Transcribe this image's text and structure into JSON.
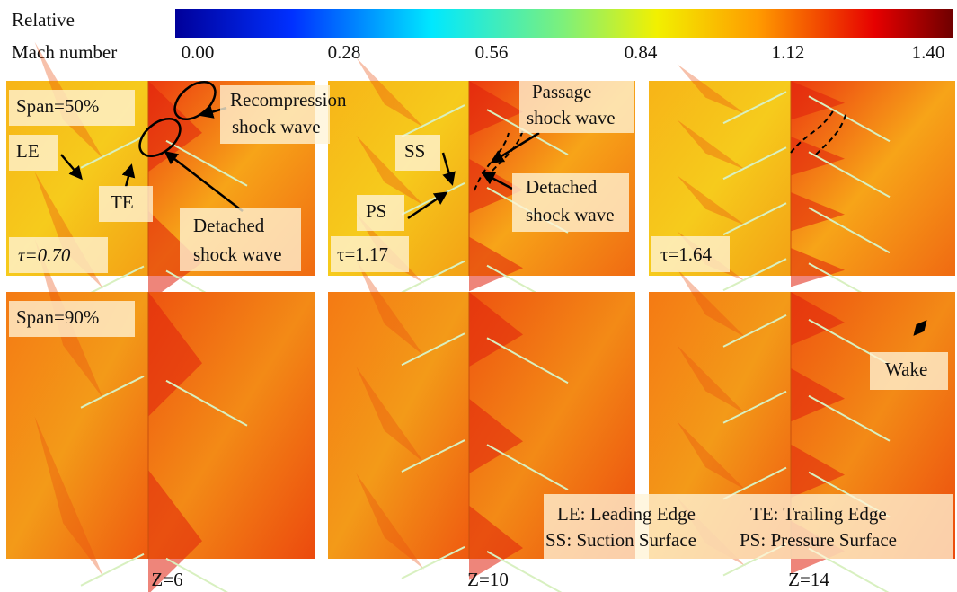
{
  "colorbar": {
    "title": [
      "Relative",
      "Mach number"
    ],
    "ticks": [
      "0.00",
      "0.28",
      "0.56",
      "0.84",
      "1.12",
      "1.40"
    ]
  },
  "rows": [
    "Span=50%",
    "Span=90%"
  ],
  "columns": [
    "Z=6",
    "Z=10",
    "Z=14"
  ],
  "tau": [
    "τ=0.70",
    "τ=1.17",
    "τ=1.64"
  ],
  "annotations": {
    "le": "LE",
    "te": "TE",
    "ss": "SS",
    "ps": "PS",
    "wake": "Wake",
    "recompression": [
      "Recompression",
      "shock wave"
    ],
    "detached_z6": [
      "Detached",
      "shock wave"
    ],
    "passage": [
      "Passage",
      "shock wave"
    ],
    "detached_z10": [
      "Detached",
      "shock wave"
    ]
  },
  "legend": [
    "LE: Leading Edge",
    "TE: Trailing Edge",
    "SS: Suction Surface",
    "PS: Pressure Surface"
  ]
}
